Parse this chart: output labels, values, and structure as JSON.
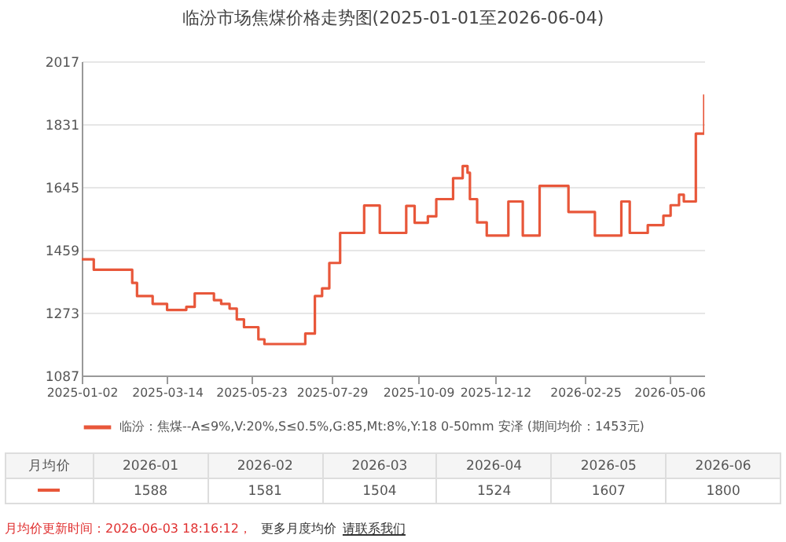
{
  "chart_data": {
    "type": "step",
    "title": "临汾市场焦煤价格走势图(2025-01-01至2026-06-04)",
    "x": [
      "2025-01-02",
      "2025-01-12",
      "2025-02-13",
      "2025-02-17",
      "2025-03-02",
      "2025-03-14",
      "2025-03-30",
      "2025-04-06",
      "2025-04-22",
      "2025-04-28",
      "2025-05-05",
      "2025-05-11",
      "2025-05-17",
      "2025-05-29",
      "2025-06-03",
      "2025-07-07",
      "2025-07-15",
      "2025-07-21",
      "2025-07-27",
      "2025-08-05",
      "2025-08-25",
      "2025-09-07",
      "2025-09-29",
      "2025-10-06",
      "2025-10-17",
      "2025-10-24",
      "2025-11-07",
      "2025-11-15",
      "2025-11-19",
      "2025-11-21",
      "2025-11-27",
      "2025-12-05",
      "2025-12-23",
      "2026-01-04",
      "2026-01-18",
      "2026-02-11",
      "2026-03-05",
      "2026-03-27",
      "2026-04-03",
      "2026-04-18",
      "2026-05-01",
      "2026-05-07",
      "2026-05-14",
      "2026-05-18",
      "2026-05-28",
      "2026-06-04"
    ],
    "series": [
      {
        "name": "临汾：焦煤--A≤9%,V:20%,S≤0.5%,G:85,Mt:8%,Y:18 0-50mm 安泽  (期间均价：1453元)",
        "color": "#e8573a",
        "values": [
          1431,
          1400,
          1361,
          1322,
          1299,
          1281,
          1290,
          1330,
          1310,
          1299,
          1285,
          1253,
          1230,
          1194,
          1180,
          1211,
          1322,
          1345,
          1420,
          1509,
          1590,
          1509,
          1589,
          1539,
          1558,
          1609,
          1671,
          1707,
          1687,
          1609,
          1540,
          1501,
          1602,
          1501,
          1648,
          1571,
          1501,
          1602,
          1509,
          1532,
          1560,
          1591,
          1622,
          1602,
          1803,
          1919
        ]
      }
    ],
    "xlim": [
      "2025-01-02",
      "2026-06-04"
    ],
    "xticks": [
      "2025-01-02",
      "2025-03-14",
      "2025-05-23",
      "2025-07-29",
      "2025-10-09",
      "2025-12-12",
      "2026-02-25",
      "2026-05-06"
    ],
    "ylim": [
      1087,
      2017
    ],
    "yticks": [
      1087,
      1273,
      1459,
      1645,
      1831,
      2017
    ],
    "grid": "y",
    "legend": "bottom",
    "annotations": [
      "月均价",
      "2026-01",
      "2026-02",
      "2026-03",
      "2026-04",
      "2026-05",
      "2026-06",
      "1588",
      "1581",
      "1504",
      "1524",
      "1607",
      "1800",
      "月均价更新时间：2026-06-03 18:16:12，",
      "更多月度均价",
      "请联系我们"
    ]
  }
}
